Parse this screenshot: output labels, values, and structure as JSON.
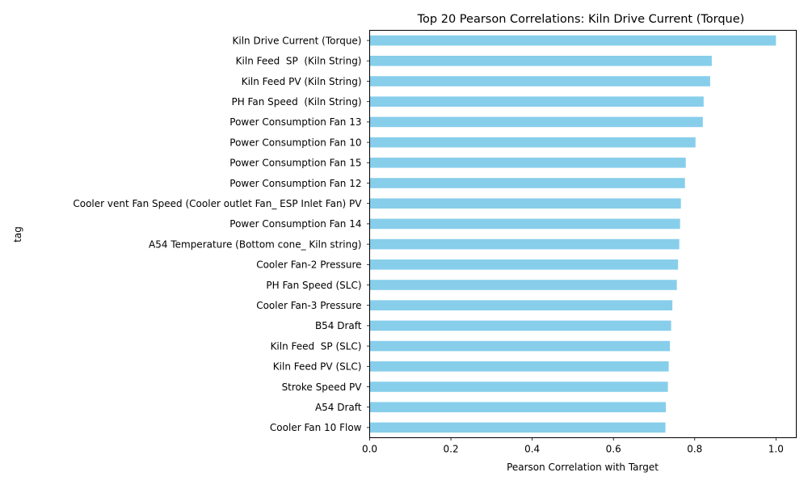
{
  "chart_data": {
    "type": "bar",
    "orientation": "horizontal",
    "title": "Top 20 Pearson Correlations: Kiln Drive Current (Torque)",
    "xlabel": "Pearson Correlation with Target",
    "ylabel": "tag",
    "xlim": [
      0.0,
      1.05
    ],
    "xticks": [
      "0.0",
      "0.2",
      "0.4",
      "0.6",
      "0.8",
      "1.0"
    ],
    "grid": false,
    "bar_color": "#87ceeb",
    "categories": [
      "Kiln Drive Current (Torque)",
      "Kiln Feed  SP  (Kiln String)",
      "Kiln Feed PV (Kiln String)",
      "PH Fan Speed  (Kiln String)",
      "Power Consumption Fan 13",
      "Power Consumption Fan 10",
      "Power Consumption Fan 15",
      "Power Consumption Fan 12",
      "Cooler vent Fan Speed (Cooler outlet Fan_ ESP Inlet Fan) PV",
      "Power Consumption Fan 14",
      "A54 Temperature (Bottom cone_ Kiln string)",
      "Cooler Fan-2 Pressure",
      "PH Fan Speed (SLC)",
      "Cooler Fan-3 Pressure",
      "B54 Draft",
      "Kiln Feed  SP (SLC)",
      "Kiln Feed PV (SLC)",
      "Stroke Speed PV",
      "A54 Draft",
      "Cooler Fan 10 Flow"
    ],
    "values": [
      1.0,
      0.842,
      0.838,
      0.822,
      0.82,
      0.802,
      0.778,
      0.776,
      0.766,
      0.764,
      0.762,
      0.759,
      0.756,
      0.745,
      0.742,
      0.739,
      0.736,
      0.734,
      0.729,
      0.728
    ]
  }
}
